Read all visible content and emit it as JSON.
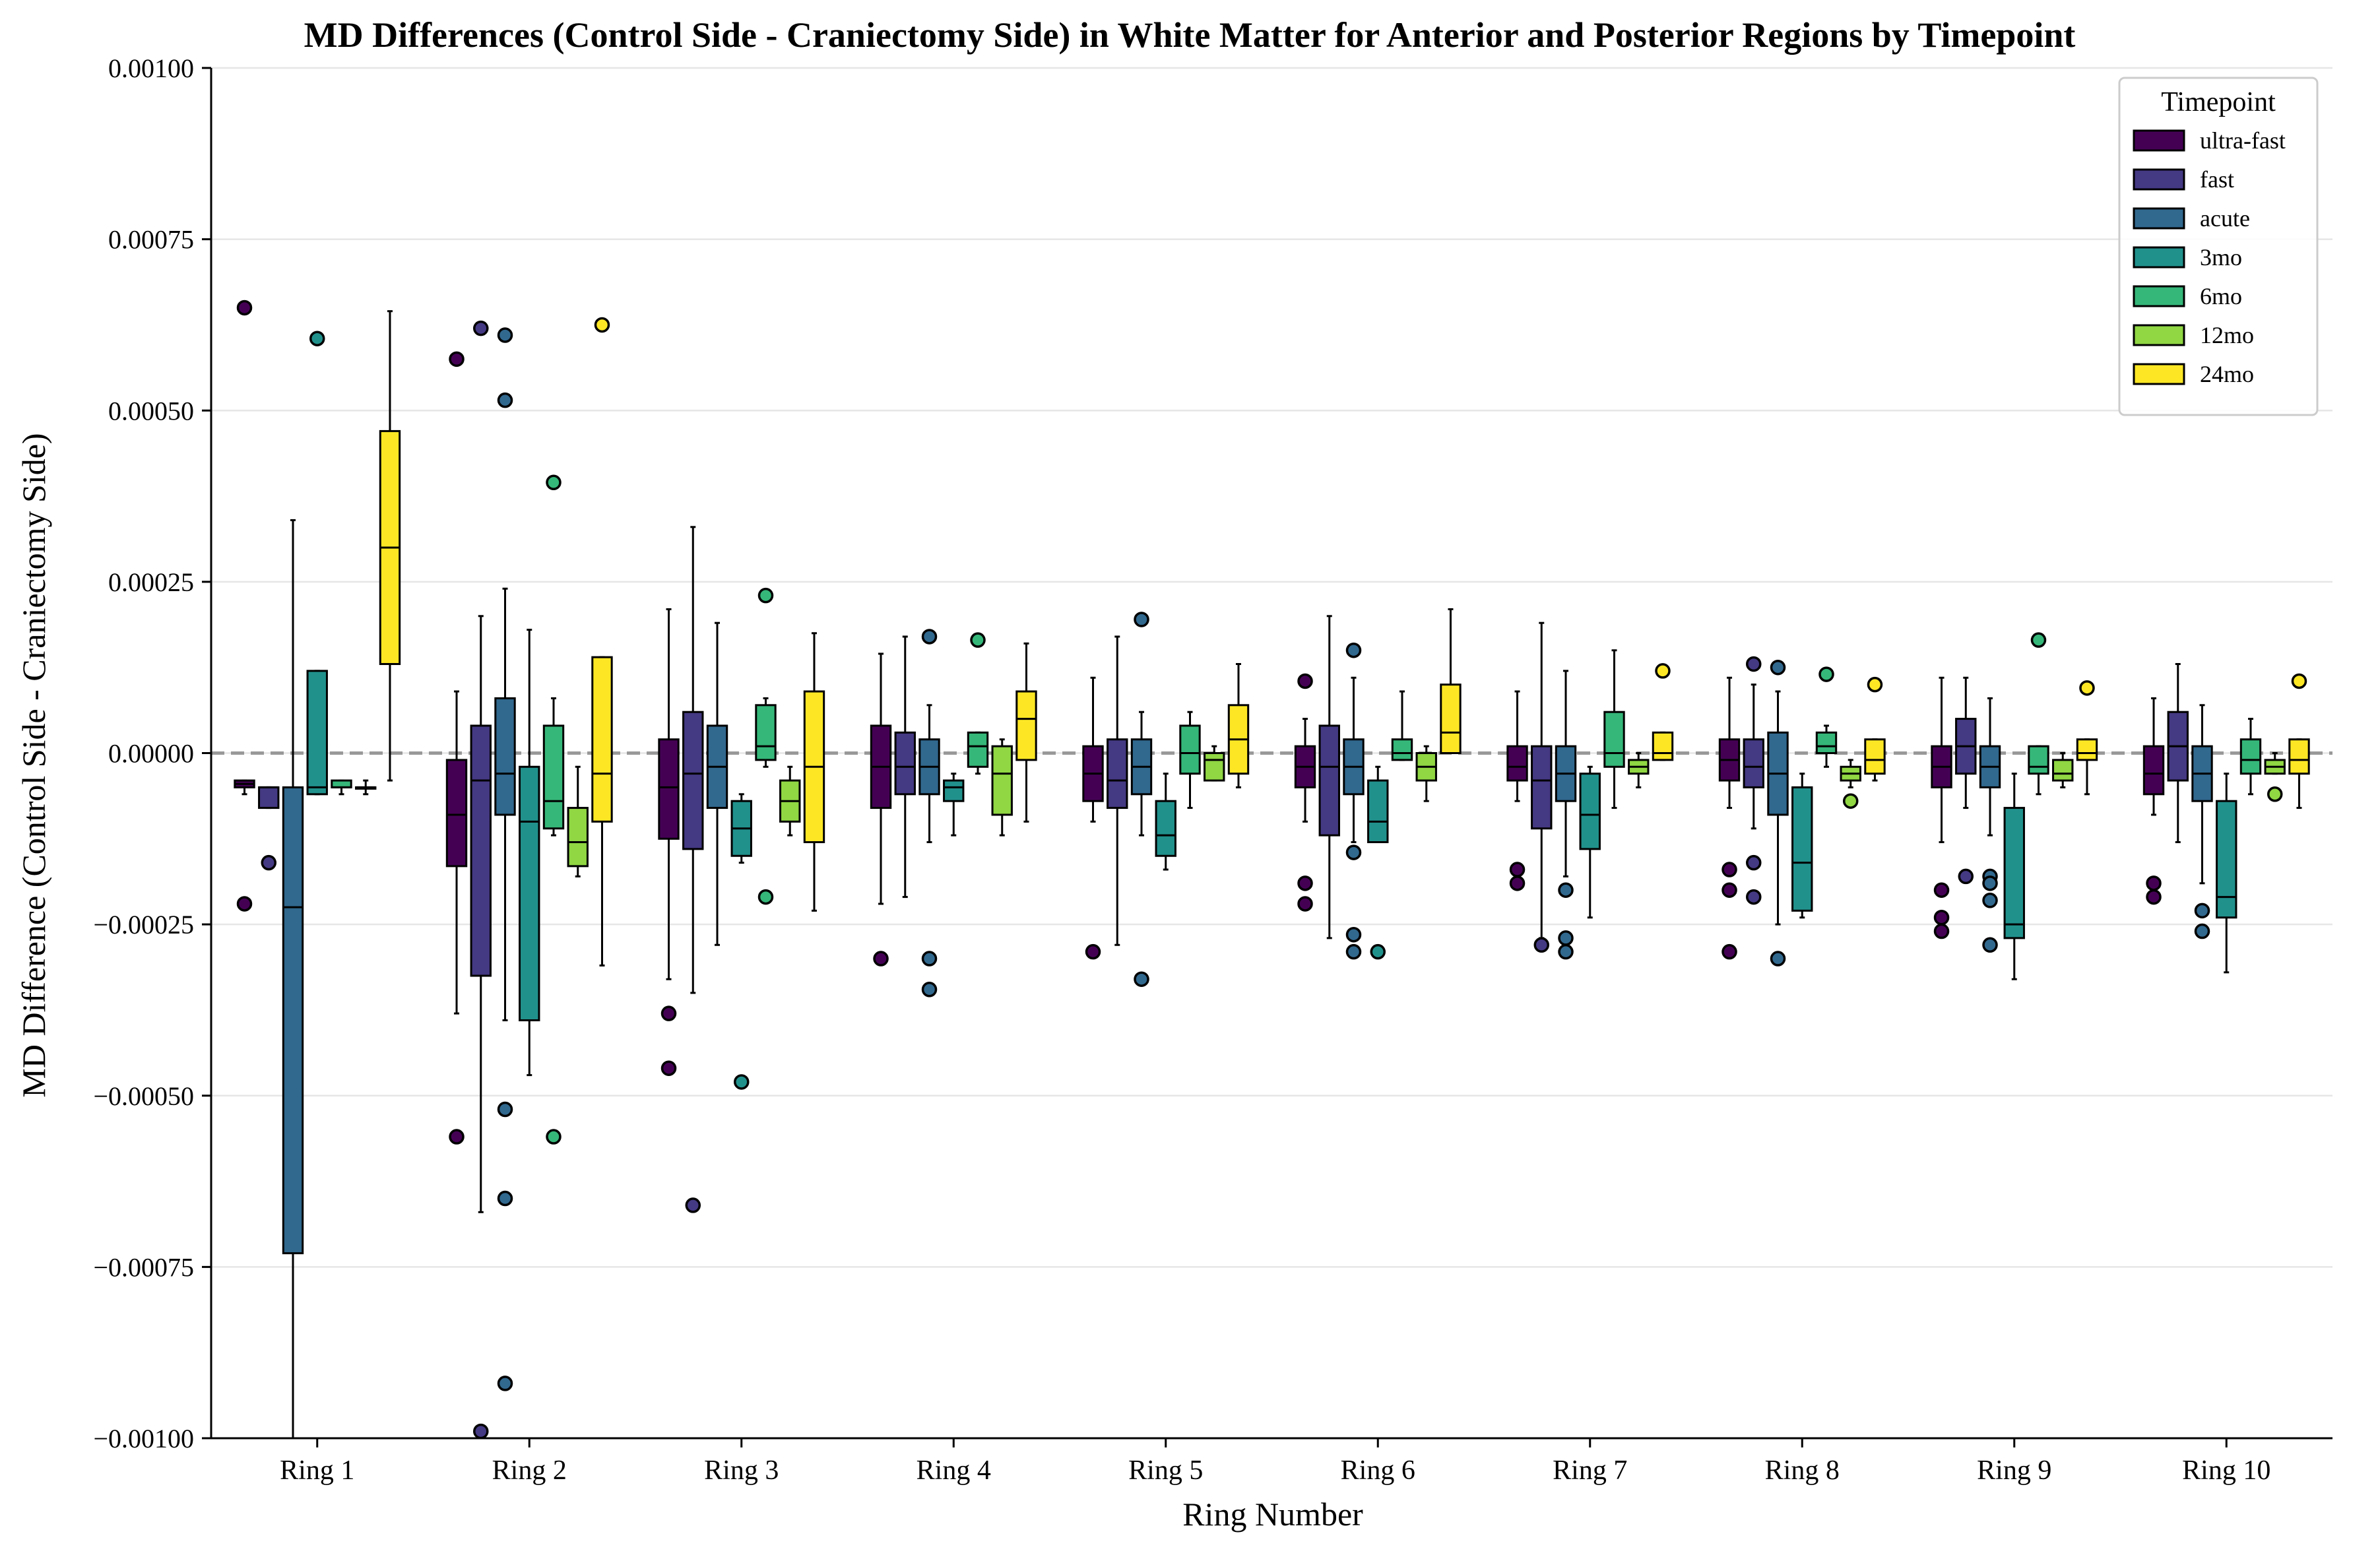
{
  "chart_data": {
    "type": "box",
    "title": "MD Differences (Control Side - Craniectomy Side) in White Matter for Anterior and Posterior Regions by Timepoint",
    "xlabel": "Ring Number",
    "ylabel": "MD Difference (Control Side - Craniectomy Side)",
    "ylim": [
      -0.001,
      0.001
    ],
    "yticks": [
      -0.001,
      -0.00075,
      -0.0005,
      -0.00025,
      0.0,
      0.00025,
      0.0005,
      0.00075,
      0.001
    ],
    "ytick_labels": [
      "−0.00100",
      "−0.00075",
      "−0.00050",
      "−0.00025",
      "0.00000",
      "0.00025",
      "0.00050",
      "0.00075",
      "0.00100"
    ],
    "grid": "horizontal",
    "reference_line": 0,
    "legend": {
      "title": "Timepoint",
      "position": "top-right"
    },
    "categories": [
      "Ring 1",
      "Ring 2",
      "Ring 3",
      "Ring 4",
      "Ring 5",
      "Ring 6",
      "Ring 7",
      "Ring 8",
      "Ring 9",
      "Ring 10"
    ],
    "series": [
      {
        "name": "ultra-fast",
        "color": "#440154",
        "boxes": [
          {
            "q1": -5e-05,
            "median": -4.5e-05,
            "q3": -4e-05,
            "whislo": -6e-05,
            "whishi": -4e-05,
            "outliers": [
              0.00065,
              -0.00022
            ]
          },
          {
            "q1": -0.000165,
            "median": -9e-05,
            "q3": -1e-05,
            "whislo": -0.00038,
            "whishi": 9e-05,
            "outliers": [
              0.000575,
              -0.00056
            ]
          },
          {
            "q1": -0.000125,
            "median": -5e-05,
            "q3": 2e-05,
            "whislo": -0.00033,
            "whishi": 0.00021,
            "outliers": [
              -0.00038,
              -0.00046
            ]
          },
          {
            "q1": -8e-05,
            "median": -2e-05,
            "q3": 4e-05,
            "whislo": -0.00022,
            "whishi": 0.000145,
            "outliers": [
              -0.0003
            ]
          },
          {
            "q1": -7e-05,
            "median": -3e-05,
            "q3": 1e-05,
            "whislo": -0.0001,
            "whishi": 0.00011,
            "outliers": [
              -0.00029
            ]
          },
          {
            "q1": -5e-05,
            "median": -2e-05,
            "q3": 1e-05,
            "whislo": -0.0001,
            "whishi": 5e-05,
            "outliers": [
              0.000105,
              -0.00019,
              -0.00022
            ]
          },
          {
            "q1": -4e-05,
            "median": -2e-05,
            "q3": 1e-05,
            "whislo": -7e-05,
            "whishi": 9e-05,
            "outliers": [
              -0.00017,
              -0.00019
            ]
          },
          {
            "q1": -4e-05,
            "median": -1e-05,
            "q3": 2e-05,
            "whislo": -8e-05,
            "whishi": 0.00011,
            "outliers": [
              -0.00017,
              -0.0002,
              -0.00029
            ]
          },
          {
            "q1": -5e-05,
            "median": -2e-05,
            "q3": 1e-05,
            "whislo": -0.00013,
            "whishi": 0.00011,
            "outliers": [
              -0.0002,
              -0.00024,
              -0.00026
            ]
          },
          {
            "q1": -6e-05,
            "median": -3e-05,
            "q3": 1e-05,
            "whislo": -9e-05,
            "whishi": 8e-05,
            "outliers": [
              -0.00019,
              -0.00021
            ]
          }
        ]
      },
      {
        "name": "fast",
        "color": "#443983",
        "boxes": [
          {
            "q1": -8e-05,
            "median": -5e-05,
            "q3": -5e-05,
            "whislo": -8e-05,
            "whishi": -5e-05,
            "outliers": [
              -0.00016
            ]
          },
          {
            "q1": -0.000325,
            "median": -4e-05,
            "q3": 4e-05,
            "whislo": -0.00067,
            "whishi": 0.0002,
            "outliers": [
              0.00062,
              -0.00099
            ]
          },
          {
            "q1": -0.00014,
            "median": -3e-05,
            "q3": 6e-05,
            "whislo": -0.00035,
            "whishi": 0.00033,
            "outliers": [
              -0.00066
            ]
          },
          {
            "q1": -6e-05,
            "median": -2e-05,
            "q3": 3e-05,
            "whislo": -0.00021,
            "whishi": 0.00017,
            "outliers": []
          },
          {
            "q1": -8e-05,
            "median": -4e-05,
            "q3": 2e-05,
            "whislo": -0.00028,
            "whishi": 0.00017,
            "outliers": []
          },
          {
            "q1": -0.00012,
            "median": -2e-05,
            "q3": 4e-05,
            "whislo": -0.00027,
            "whishi": 0.0002,
            "outliers": []
          },
          {
            "q1": -0.00011,
            "median": -4e-05,
            "q3": 1e-05,
            "whislo": -0.00027,
            "whishi": 0.00019,
            "outliers": [
              -0.00028
            ]
          },
          {
            "q1": -5e-05,
            "median": -2e-05,
            "q3": 2e-05,
            "whislo": -0.00011,
            "whishi": 0.0001,
            "outliers": [
              0.00013,
              -0.00016,
              -0.00021
            ]
          },
          {
            "q1": -3e-05,
            "median": 1e-05,
            "q3": 5e-05,
            "whislo": -8e-05,
            "whishi": 0.00011,
            "outliers": [
              -0.00018
            ]
          },
          {
            "q1": -4e-05,
            "median": 1e-05,
            "q3": 6e-05,
            "whislo": -0.00013,
            "whishi": 0.00013,
            "outliers": []
          }
        ]
      },
      {
        "name": "acute",
        "color": "#31688e",
        "boxes": [
          {
            "q1": -0.00073,
            "median": -0.000225,
            "q3": -5e-05,
            "whislo": -0.001,
            "whishi": 0.00034,
            "outliers": []
          },
          {
            "q1": -9e-05,
            "median": -3e-05,
            "q3": 8e-05,
            "whislo": -0.00039,
            "whishi": 0.00024,
            "outliers": [
              0.00061,
              0.000515,
              -0.00052,
              -0.00065,
              -0.00092
            ]
          },
          {
            "q1": -8e-05,
            "median": -2e-05,
            "q3": 4e-05,
            "whislo": -0.00028,
            "whishi": 0.00019,
            "outliers": []
          },
          {
            "q1": -6e-05,
            "median": -2e-05,
            "q3": 2e-05,
            "whislo": -0.00013,
            "whishi": 7e-05,
            "outliers": [
              0.00017,
              -0.0003,
              -0.000345
            ]
          },
          {
            "q1": -6e-05,
            "median": -2e-05,
            "q3": 2e-05,
            "whislo": -0.00012,
            "whishi": 6e-05,
            "outliers": [
              0.000195,
              -0.00033
            ]
          },
          {
            "q1": -6e-05,
            "median": -2e-05,
            "q3": 2e-05,
            "whislo": -0.00013,
            "whishi": 0.00011,
            "outliers": [
              0.00015,
              -0.000145,
              -0.000265,
              -0.00029
            ]
          },
          {
            "q1": -7e-05,
            "median": -3e-05,
            "q3": 1e-05,
            "whislo": -0.00018,
            "whishi": 0.00012,
            "outliers": [
              -0.0002,
              -0.00027,
              -0.00029
            ]
          },
          {
            "q1": -9e-05,
            "median": -3e-05,
            "q3": 3e-05,
            "whislo": -0.00025,
            "whishi": 9e-05,
            "outliers": [
              0.000125,
              -0.0003
            ]
          },
          {
            "q1": -5e-05,
            "median": -2e-05,
            "q3": 1e-05,
            "whislo": -0.00012,
            "whishi": 8e-05,
            "outliers": [
              -0.00018,
              -0.00019,
              -0.000215,
              -0.00028
            ]
          },
          {
            "q1": -7e-05,
            "median": -3e-05,
            "q3": 1e-05,
            "whislo": -0.00019,
            "whishi": 7e-05,
            "outliers": [
              -0.00023,
              -0.00026
            ]
          }
        ]
      },
      {
        "name": "3mo",
        "color": "#21918c",
        "boxes": [
          {
            "q1": -6e-05,
            "median": -5e-05,
            "q3": 0.00012,
            "whislo": -6e-05,
            "whishi": 0.00012,
            "outliers": [
              0.000605
            ]
          },
          {
            "q1": -0.00039,
            "median": -0.0001,
            "q3": -2e-05,
            "whislo": -0.00047,
            "whishi": 0.00018,
            "outliers": []
          },
          {
            "q1": -0.00015,
            "median": -0.00011,
            "q3": -7e-05,
            "whislo": -0.00016,
            "whishi": -6e-05,
            "outliers": [
              -0.00048
            ]
          },
          {
            "q1": -7e-05,
            "median": -5e-05,
            "q3": -4e-05,
            "whislo": -0.00012,
            "whishi": -3e-05,
            "outliers": []
          },
          {
            "q1": -0.00015,
            "median": -0.00012,
            "q3": -7e-05,
            "whislo": -0.00017,
            "whishi": -3e-05,
            "outliers": []
          },
          {
            "q1": -0.00013,
            "median": -0.0001,
            "q3": -4e-05,
            "whislo": -0.00013,
            "whishi": -2e-05,
            "outliers": [
              -0.00029
            ]
          },
          {
            "q1": -0.00014,
            "median": -9e-05,
            "q3": -3e-05,
            "whislo": -0.00024,
            "whishi": -2e-05,
            "outliers": []
          },
          {
            "q1": -0.00023,
            "median": -0.00016,
            "q3": -5e-05,
            "whislo": -0.00024,
            "whishi": -3e-05,
            "outliers": []
          },
          {
            "q1": -0.00027,
            "median": -0.00025,
            "q3": -8e-05,
            "whislo": -0.00033,
            "whishi": -3e-05,
            "outliers": []
          },
          {
            "q1": -0.00024,
            "median": -0.00021,
            "q3": -7e-05,
            "whislo": -0.00032,
            "whishi": -3e-05,
            "outliers": []
          }
        ]
      },
      {
        "name": "6mo",
        "color": "#35b779",
        "boxes": [
          {
            "q1": -5e-05,
            "median": -5e-05,
            "q3": -4e-05,
            "whislo": -6e-05,
            "whishi": -4e-05,
            "outliers": []
          },
          {
            "q1": -0.00011,
            "median": -7e-05,
            "q3": 4e-05,
            "whislo": -0.00012,
            "whishi": 8e-05,
            "outliers": [
              0.000395,
              -0.00056
            ]
          },
          {
            "q1": -1e-05,
            "median": 1e-05,
            "q3": 7e-05,
            "whislo": -2e-05,
            "whishi": 8e-05,
            "outliers": [
              0.00023,
              -0.00021
            ]
          },
          {
            "q1": -2e-05,
            "median": 1e-05,
            "q3": 3e-05,
            "whislo": -3e-05,
            "whishi": 3e-05,
            "outliers": [
              0.000165
            ]
          },
          {
            "q1": -3e-05,
            "median": 0.0,
            "q3": 4e-05,
            "whislo": -8e-05,
            "whishi": 6e-05,
            "outliers": []
          },
          {
            "q1": -1e-05,
            "median": 0.0,
            "q3": 2e-05,
            "whislo": -1e-05,
            "whishi": 9e-05,
            "outliers": []
          },
          {
            "q1": -2e-05,
            "median": 0.0,
            "q3": 6e-05,
            "whislo": -8e-05,
            "whishi": 0.00015,
            "outliers": []
          },
          {
            "q1": 0.0,
            "median": 1e-05,
            "q3": 3e-05,
            "whislo": -2e-05,
            "whishi": 4e-05,
            "outliers": [
              0.000115
            ]
          },
          {
            "q1": -3e-05,
            "median": -2e-05,
            "q3": 1e-05,
            "whislo": -6e-05,
            "whishi": 1e-05,
            "outliers": [
              0.000165
            ]
          },
          {
            "q1": -3e-05,
            "median": -1e-05,
            "q3": 2e-05,
            "whislo": -6e-05,
            "whishi": 5e-05,
            "outliers": []
          }
        ]
      },
      {
        "name": "12mo",
        "color": "#90d743",
        "boxes": [
          {
            "q1": -5e-05,
            "median": -5e-05,
            "q3": -5e-05,
            "whislo": -6e-05,
            "whishi": -4e-05,
            "outliers": []
          },
          {
            "q1": -0.000165,
            "median": -0.00013,
            "q3": -8e-05,
            "whislo": -0.00018,
            "whishi": -2e-05,
            "outliers": []
          },
          {
            "q1": -0.0001,
            "median": -7e-05,
            "q3": -4e-05,
            "whislo": -0.00012,
            "whishi": -2e-05,
            "outliers": []
          },
          {
            "q1": -9e-05,
            "median": -3e-05,
            "q3": 1e-05,
            "whislo": -0.00012,
            "whishi": 2e-05,
            "outliers": []
          },
          {
            "q1": -4e-05,
            "median": -1e-05,
            "q3": 0.0,
            "whislo": -4e-05,
            "whishi": 1e-05,
            "outliers": []
          },
          {
            "q1": -4e-05,
            "median": -2e-05,
            "q3": 0.0,
            "whislo": -7e-05,
            "whishi": 1e-05,
            "outliers": []
          },
          {
            "q1": -3e-05,
            "median": -2e-05,
            "q3": -1e-05,
            "whislo": -5e-05,
            "whishi": 0.0,
            "outliers": []
          },
          {
            "q1": -4e-05,
            "median": -3e-05,
            "q3": -2e-05,
            "whislo": -5e-05,
            "whishi": -1e-05,
            "outliers": [
              -7e-05
            ]
          },
          {
            "q1": -4e-05,
            "median": -3e-05,
            "q3": -1e-05,
            "whislo": -5e-05,
            "whishi": 0.0,
            "outliers": []
          },
          {
            "q1": -3e-05,
            "median": -2e-05,
            "q3": -1e-05,
            "whislo": -3e-05,
            "whishi": 0.0,
            "outliers": [
              -6e-05
            ]
          }
        ]
      },
      {
        "name": "24mo",
        "color": "#fde725",
        "boxes": [
          {
            "q1": 0.00013,
            "median": 0.0003,
            "q3": 0.00047,
            "whislo": -4e-05,
            "whishi": 0.000645,
            "outliers": []
          },
          {
            "q1": -0.0001,
            "median": -3e-05,
            "q3": 0.00014,
            "whislo": -0.00031,
            "whishi": 0.00014,
            "outliers": [
              0.000625
            ]
          },
          {
            "q1": -0.00013,
            "median": -2e-05,
            "q3": 9e-05,
            "whislo": -0.00023,
            "whishi": 0.000175,
            "outliers": []
          },
          {
            "q1": -1e-05,
            "median": 5e-05,
            "q3": 9e-05,
            "whislo": -0.0001,
            "whishi": 0.00016,
            "outliers": []
          },
          {
            "q1": -3e-05,
            "median": 2e-05,
            "q3": 7e-05,
            "whislo": -5e-05,
            "whishi": 0.00013,
            "outliers": []
          },
          {
            "q1": 0.0,
            "median": 3e-05,
            "q3": 0.0001,
            "whislo": 0.0,
            "whishi": 0.00021,
            "outliers": []
          },
          {
            "q1": -1e-05,
            "median": 0.0,
            "q3": 3e-05,
            "whislo": -1e-05,
            "whishi": 3e-05,
            "outliers": [
              0.00012
            ]
          },
          {
            "q1": -3e-05,
            "median": -1e-05,
            "q3": 2e-05,
            "whislo": -4e-05,
            "whishi": 2e-05,
            "outliers": [
              0.0001
            ]
          },
          {
            "q1": -1e-05,
            "median": 0.0,
            "q3": 2e-05,
            "whislo": -6e-05,
            "whishi": 2e-05,
            "outliers": [
              9.5e-05
            ]
          },
          {
            "q1": -3e-05,
            "median": -1e-05,
            "q3": 2e-05,
            "whislo": -8e-05,
            "whishi": 2e-05,
            "outliers": [
              0.000105
            ]
          }
        ]
      }
    ]
  }
}
